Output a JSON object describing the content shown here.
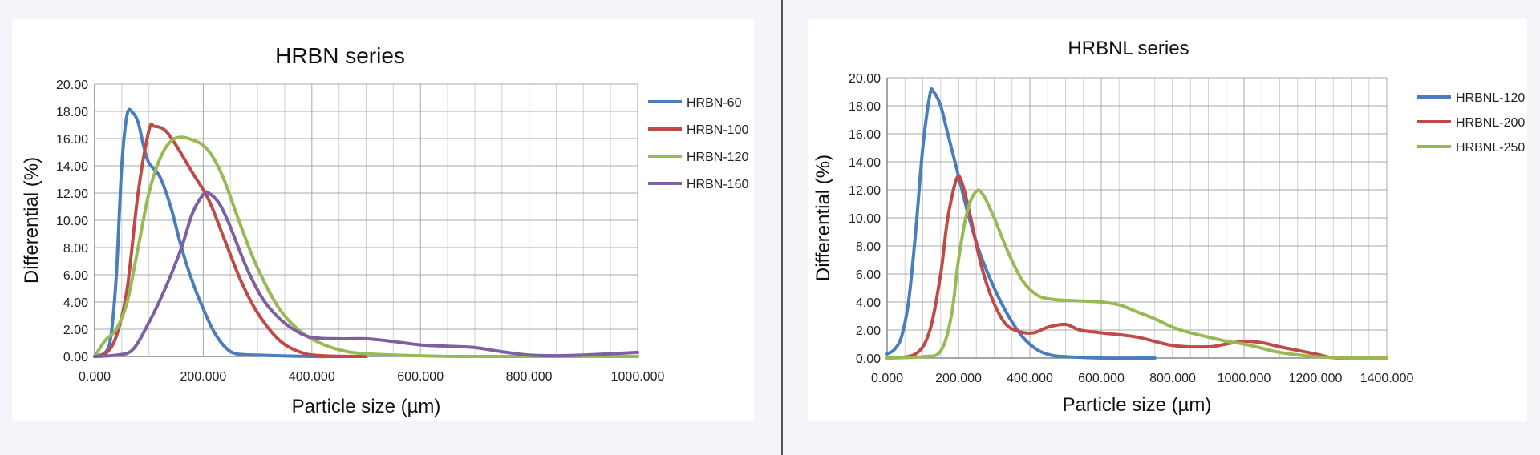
{
  "chart_data": [
    {
      "type": "line",
      "title": "HRBN series",
      "xlabel": "Particle size (µm)",
      "ylabel": "Differential (%)",
      "xlim": [
        0,
        1000
      ],
      "ylim": [
        0,
        20
      ],
      "x_ticks": [
        "0.000",
        "200.000",
        "400.000",
        "600.000",
        "800.000",
        "1000.000"
      ],
      "y_ticks": [
        "0.00",
        "2.00",
        "4.00",
        "6.00",
        "8.00",
        "10.00",
        "12.00",
        "14.00",
        "16.00",
        "18.00",
        "20.00"
      ],
      "grid": true,
      "legend_position": "right",
      "series": [
        {
          "name": "HRBN-60",
          "color": "#4a7ebb",
          "points": [
            [
              0,
              0
            ],
            [
              20,
              0.3
            ],
            [
              30,
              1.5
            ],
            [
              40,
              6
            ],
            [
              50,
              14
            ],
            [
              60,
              17.8
            ],
            [
              70,
              17.9
            ],
            [
              80,
              17.2
            ],
            [
              90,
              15.5
            ],
            [
              100,
              14.2
            ],
            [
              120,
              13.2
            ],
            [
              140,
              11
            ],
            [
              160,
              8
            ],
            [
              180,
              5.5
            ],
            [
              200,
              3.5
            ],
            [
              220,
              1.8
            ],
            [
              240,
              0.7
            ],
            [
              260,
              0.2
            ],
            [
              300,
              0.1
            ],
            [
              400,
              0
            ],
            [
              500,
              0
            ]
          ]
        },
        {
          "name": "HRBN-100",
          "color": "#be4b48",
          "points": [
            [
              0,
              0
            ],
            [
              20,
              0.2
            ],
            [
              40,
              1.5
            ],
            [
              60,
              5
            ],
            [
              80,
              12
            ],
            [
              100,
              16.6
            ],
            [
              110,
              16.9
            ],
            [
              130,
              16.6
            ],
            [
              150,
              15.5
            ],
            [
              180,
              13.5
            ],
            [
              210,
              11.5
            ],
            [
              240,
              8.5
            ],
            [
              270,
              5.5
            ],
            [
              300,
              3.2
            ],
            [
              340,
              1.2
            ],
            [
              380,
              0.3
            ],
            [
              420,
              0.05
            ],
            [
              500,
              0
            ]
          ]
        },
        {
          "name": "HRBN-120",
          "color": "#98b954",
          "points": [
            [
              0,
              0
            ],
            [
              20,
              1.2
            ],
            [
              40,
              2
            ],
            [
              60,
              4
            ],
            [
              80,
              8
            ],
            [
              100,
              12
            ],
            [
              120,
              14.5
            ],
            [
              140,
              15.8
            ],
            [
              160,
              16.1
            ],
            [
              180,
              15.9
            ],
            [
              200,
              15.5
            ],
            [
              220,
              14.5
            ],
            [
              240,
              12.8
            ],
            [
              270,
              9.5
            ],
            [
              300,
              6.5
            ],
            [
              340,
              3.5
            ],
            [
              380,
              1.8
            ],
            [
              420,
              0.9
            ],
            [
              460,
              0.4
            ],
            [
              500,
              0.2
            ],
            [
              600,
              0.05
            ],
            [
              700,
              0
            ],
            [
              1000,
              0
            ]
          ]
        },
        {
          "name": "HRBN-160",
          "color": "#7d60a0",
          "points": [
            [
              0,
              0
            ],
            [
              40,
              0.1
            ],
            [
              70,
              0.5
            ],
            [
              100,
              2.5
            ],
            [
              130,
              5
            ],
            [
              160,
              8
            ],
            [
              180,
              10.5
            ],
            [
              200,
              11.9
            ],
            [
              210,
              12
            ],
            [
              230,
              11.2
            ],
            [
              250,
              9.5
            ],
            [
              280,
              6.5
            ],
            [
              310,
              4.2
            ],
            [
              340,
              2.8
            ],
            [
              370,
              1.9
            ],
            [
              400,
              1.4
            ],
            [
              450,
              1.3
            ],
            [
              500,
              1.3
            ],
            [
              550,
              1.1
            ],
            [
              600,
              0.85
            ],
            [
              650,
              0.75
            ],
            [
              700,
              0.65
            ],
            [
              750,
              0.35
            ],
            [
              800,
              0.1
            ],
            [
              850,
              0.05
            ],
            [
              900,
              0.1
            ],
            [
              950,
              0.2
            ],
            [
              1000,
              0.3
            ]
          ]
        }
      ]
    },
    {
      "type": "line",
      "title": "HRBNL series",
      "xlabel": "Particle size (µm)",
      "ylabel": "Differential (%)",
      "xlim": [
        0,
        1400
      ],
      "ylim": [
        0,
        20
      ],
      "x_ticks": [
        "0.000",
        "200.000",
        "400.000",
        "600.000",
        "800.000",
        "1000.000",
        "1200.000",
        "1400.000"
      ],
      "y_ticks": [
        "0.00",
        "2.00",
        "4.00",
        "6.00",
        "8.00",
        "10.00",
        "12.00",
        "14.00",
        "16.00",
        "18.00",
        "20.00"
      ],
      "grid": true,
      "legend_position": "right",
      "series": [
        {
          "name": "HRBNL-120",
          "color": "#4a7ebb",
          "points": [
            [
              0,
              0.3
            ],
            [
              20,
              0.6
            ],
            [
              40,
              1.5
            ],
            [
              60,
              4
            ],
            [
              80,
              9
            ],
            [
              100,
              15
            ],
            [
              120,
              18.8
            ],
            [
              130,
              19
            ],
            [
              150,
              18
            ],
            [
              170,
              16
            ],
            [
              200,
              13
            ],
            [
              230,
              10
            ],
            [
              260,
              7.5
            ],
            [
              300,
              5
            ],
            [
              340,
              3
            ],
            [
              380,
              1.5
            ],
            [
              420,
              0.6
            ],
            [
              460,
              0.2
            ],
            [
              500,
              0.1
            ],
            [
              600,
              0
            ],
            [
              750,
              0
            ]
          ]
        },
        {
          "name": "HRBNL-200",
          "color": "#be4b48",
          "points": [
            [
              0,
              0
            ],
            [
              80,
              0.3
            ],
            [
              120,
              2
            ],
            [
              150,
              6
            ],
            [
              170,
              10
            ],
            [
              195,
              12.8
            ],
            [
              210,
              12.5
            ],
            [
              230,
              10.5
            ],
            [
              260,
              7
            ],
            [
              290,
              4.5
            ],
            [
              330,
              2.5
            ],
            [
              370,
              1.9
            ],
            [
              410,
              1.8
            ],
            [
              450,
              2.2
            ],
            [
              500,
              2.4
            ],
            [
              540,
              2.0
            ],
            [
              600,
              1.8
            ],
            [
              700,
              1.5
            ],
            [
              800,
              0.9
            ],
            [
              900,
              0.8
            ],
            [
              950,
              1.0
            ],
            [
              1000,
              1.2
            ],
            [
              1050,
              1.1
            ],
            [
              1100,
              0.8
            ],
            [
              1200,
              0.3
            ],
            [
              1260,
              0
            ],
            [
              1400,
              0
            ]
          ]
        },
        {
          "name": "HRBNL-250",
          "color": "#98b954",
          "points": [
            [
              0,
              0
            ],
            [
              100,
              0.1
            ],
            [
              150,
              0.5
            ],
            [
              180,
              3
            ],
            [
              200,
              7
            ],
            [
              225,
              10.5
            ],
            [
              250,
              11.9
            ],
            [
              270,
              11.6
            ],
            [
              300,
              10
            ],
            [
              340,
              7.5
            ],
            [
              380,
              5.5
            ],
            [
              420,
              4.5
            ],
            [
              460,
              4.2
            ],
            [
              520,
              4.1
            ],
            [
              600,
              4.0
            ],
            [
              650,
              3.8
            ],
            [
              700,
              3.3
            ],
            [
              750,
              2.8
            ],
            [
              800,
              2.2
            ],
            [
              850,
              1.8
            ],
            [
              900,
              1.5
            ],
            [
              950,
              1.2
            ],
            [
              1000,
              1.0
            ],
            [
              1050,
              0.7
            ],
            [
              1100,
              0.4
            ],
            [
              1200,
              0.1
            ],
            [
              1300,
              0
            ],
            [
              1400,
              0
            ]
          ]
        }
      ]
    }
  ]
}
